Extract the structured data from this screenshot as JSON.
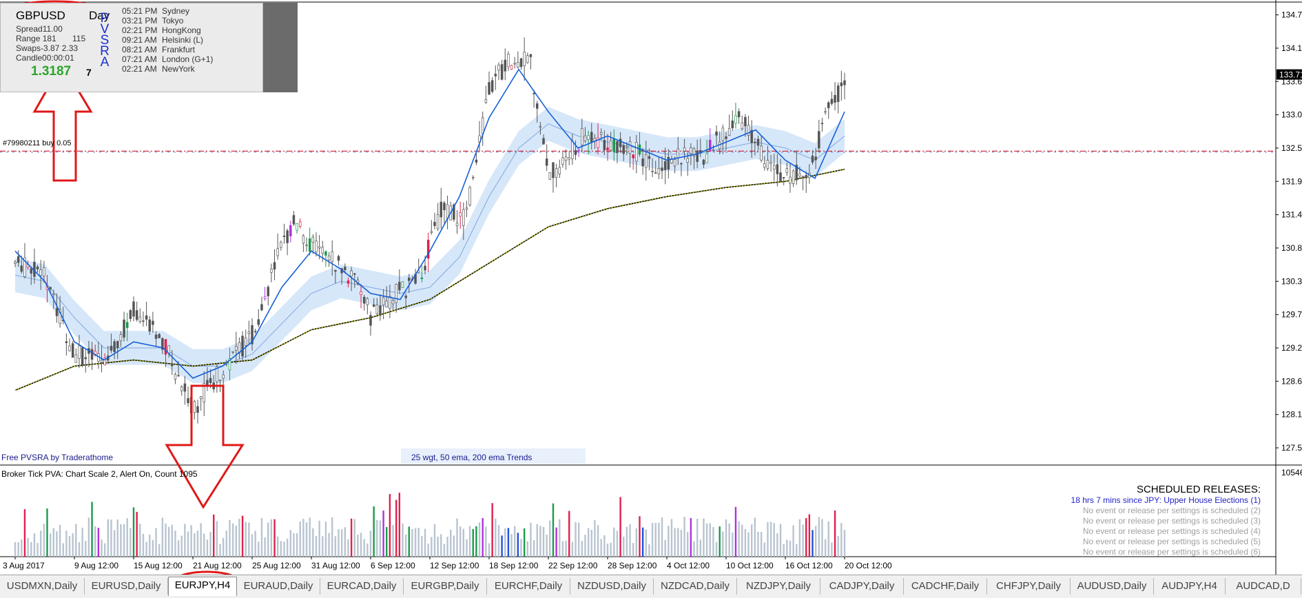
{
  "info_panel": {
    "symbol": "GBPUSD",
    "timeframe": "Day",
    "spread": "Spread11.00",
    "range": "Range 181",
    "range_extra": "115",
    "swaps": "Swaps-3.87  2.33",
    "candle": "Candle00:00:01",
    "price": "1.3187",
    "extra": "7",
    "pvsra_label": "PVSRA"
  },
  "clocks": [
    {
      "time": "05:21 PM",
      "city": "Sydney"
    },
    {
      "time": "03:21 PM",
      "city": "Tokyo"
    },
    {
      "time": "02:21 PM",
      "city": "HongKong"
    },
    {
      "time": "09:21 AM",
      "city": "Helsinki  (L)"
    },
    {
      "time": "08:21 AM",
      "city": "Frankfurt"
    },
    {
      "time": "07:21 AM",
      "city": "London  (G+1)"
    },
    {
      "time": "02:21 AM",
      "city": "NewYork"
    }
  ],
  "order_label": "#79980211 buy 0.05",
  "footer": {
    "credit": "Free  PVSRA  by  Traderathome",
    "trends": "25  wgt,  50  ema,  200  ema  Trends"
  },
  "volume_panel": {
    "header": "Broker Tick  PVA:    Chart Scale  2,  Alert On,  Count   1095",
    "axis_label": "10546"
  },
  "scheduled": {
    "title": "SCHEDULED RELEASES:",
    "first": "18 hrs 7 mins since JPY: Upper House Elections (1)",
    "others": [
      "No event or release per settings is scheduled (2)",
      "No event or release per settings is scheduled (3)",
      "No event or release per settings is scheduled (4)",
      "No event or release per settings is scheduled (5)",
      "No event or release per settings is scheduled (6)"
    ]
  },
  "price_axis": {
    "labels": [
      "134.70",
      "134.15",
      "133.60",
      "133.05",
      "132.50",
      "131.95",
      "131.40",
      "130.85",
      "130.30",
      "129.75",
      "129.20",
      "128.65",
      "128.10",
      "127.55"
    ],
    "current": "133.71"
  },
  "time_axis": {
    "labels": [
      "3 Aug 2017",
      "9 Aug 12:00",
      "15 Aug 12:00",
      "21 Aug 12:00",
      "25 Aug 12:00",
      "31 Aug 12:00",
      "6 Sep 12:00",
      "12 Sep 12:00",
      "18 Sep 12:00",
      "22 Sep 12:00",
      "28 Sep 12:00",
      "4 Oct 12:00",
      "10 Oct 12:00",
      "16 Oct 12:00",
      "20 Oct 12:00"
    ]
  },
  "tabs": [
    {
      "label": "USDMXN,Daily",
      "active": false
    },
    {
      "label": "EURUSD,Daily",
      "active": false
    },
    {
      "label": "EURJPY,H4",
      "active": true
    },
    {
      "label": "EURAUD,Daily",
      "active": false
    },
    {
      "label": "EURCAD,Daily",
      "active": false
    },
    {
      "label": "EURGBP,Daily",
      "active": false
    },
    {
      "label": "EURCHF,Daily",
      "active": false
    },
    {
      "label": "NZDUSD,Daily",
      "active": false
    },
    {
      "label": "NZDCAD,Daily",
      "active": false
    },
    {
      "label": "NZDJPY,Daily",
      "active": false
    },
    {
      "label": "CADJPY,Daily",
      "active": false
    },
    {
      "label": "CADCHF,Daily",
      "active": false
    },
    {
      "label": "CHFJPY,Daily",
      "active": false
    },
    {
      "label": "AUDUSD,Daily",
      "active": false
    },
    {
      "label": "AUDJPY,H4",
      "active": false
    },
    {
      "label": "AUDCAD,D",
      "active": false
    }
  ],
  "colors": {
    "ema_fast": "#1560d8",
    "ema_band": "#cfe3f8",
    "ema_slow": "#c8c800",
    "order_line_red": "#d03040",
    "order_line_blue": "#3050c0",
    "annotation_red": "#e01818",
    "vol_normal": "#b8c4d0",
    "vol_climax_red": "#e0204a",
    "vol_climax_green": "#1a9a4a",
    "vol_rising_blue": "#2050e0",
    "vol_magenta": "#b030e0",
    "schedule_blue": "#2222c8",
    "schedule_grey": "#a0a0a0"
  },
  "chart_data": {
    "type": "candlestick",
    "instrument": "EURJPY",
    "timeframe": "H4",
    "ylim": [
      127.3,
      134.9
    ],
    "x_categories": [
      "3 Aug 2017",
      "9 Aug 12:00",
      "15 Aug 12:00",
      "21 Aug 12:00",
      "25 Aug 12:00",
      "31 Aug 12:00",
      "6 Sep 12:00",
      "12 Sep 12:00",
      "18 Sep 12:00",
      "22 Sep 12:00",
      "28 Sep 12:00",
      "4 Oct 12:00",
      "10 Oct 12:00",
      "16 Oct 12:00",
      "20 Oct 12:00"
    ],
    "close_path": [
      [
        0,
        130.6
      ],
      [
        0.5,
        130.4
      ],
      [
        1,
        129.1
      ],
      [
        1.5,
        129.0
      ],
      [
        2,
        129.8
      ],
      [
        2.5,
        129.3
      ],
      [
        3,
        128.2
      ],
      [
        3.3,
        128.6
      ],
      [
        3.7,
        129.1
      ],
      [
        4,
        129.4
      ],
      [
        4.4,
        130.6
      ],
      [
        4.7,
        131.3
      ],
      [
        5.0,
        130.9
      ],
      [
        5.4,
        130.6
      ],
      [
        5.8,
        130.3
      ],
      [
        6,
        129.7
      ],
      [
        6.4,
        130.1
      ],
      [
        6.8,
        130.3
      ],
      [
        7.2,
        131.5
      ],
      [
        7.6,
        131.3
      ],
      [
        8.0,
        133.5
      ],
      [
        8.4,
        134.0
      ],
      [
        8.7,
        133.9
      ],
      [
        9.0,
        132.1
      ],
      [
        9.3,
        132.3
      ],
      [
        9.6,
        132.7
      ],
      [
        10.0,
        132.6
      ],
      [
        10.4,
        132.5
      ],
      [
        10.8,
        132.2
      ],
      [
        11.2,
        132.4
      ],
      [
        11.6,
        132.3
      ],
      [
        12.0,
        132.8
      ],
      [
        12.3,
        133.0
      ],
      [
        12.6,
        132.4
      ],
      [
        13.0,
        132.0
      ],
      [
        13.4,
        132.1
      ],
      [
        13.7,
        133.1
      ],
      [
        14.0,
        133.6
      ]
    ],
    "ema25_path": [
      [
        0,
        130.8
      ],
      [
        0.5,
        130.3
      ],
      [
        1,
        129.3
      ],
      [
        1.5,
        129.0
      ],
      [
        2,
        129.3
      ],
      [
        2.5,
        129.2
      ],
      [
        3,
        128.7
      ],
      [
        3.5,
        128.9
      ],
      [
        4,
        129.3
      ],
      [
        4.5,
        130.2
      ],
      [
        5,
        130.8
      ],
      [
        5.5,
        130.5
      ],
      [
        6,
        130.1
      ],
      [
        6.5,
        130.0
      ],
      [
        7,
        130.8
      ],
      [
        7.5,
        131.7
      ],
      [
        8,
        133.0
      ],
      [
        8.5,
        133.8
      ],
      [
        9,
        133.1
      ],
      [
        9.5,
        132.5
      ],
      [
        10,
        132.7
      ],
      [
        10.5,
        132.5
      ],
      [
        11,
        132.3
      ],
      [
        11.5,
        132.4
      ],
      [
        12,
        132.6
      ],
      [
        12.5,
        132.8
      ],
      [
        13,
        132.3
      ],
      [
        13.5,
        132.0
      ],
      [
        14,
        133.1
      ]
    ],
    "ema50_path": [
      [
        0,
        130.4
      ],
      [
        0.5,
        130.3
      ],
      [
        1,
        129.7
      ],
      [
        1.5,
        129.2
      ],
      [
        2,
        129.2
      ],
      [
        2.5,
        129.2
      ],
      [
        3,
        128.9
      ],
      [
        3.5,
        128.9
      ],
      [
        4,
        129.1
      ],
      [
        4.5,
        129.6
      ],
      [
        5,
        130.1
      ],
      [
        5.5,
        130.3
      ],
      [
        6,
        130.2
      ],
      [
        6.5,
        130.1
      ],
      [
        7,
        130.2
      ],
      [
        7.5,
        130.7
      ],
      [
        8,
        131.7
      ],
      [
        8.5,
        132.5
      ],
      [
        9,
        132.9
      ],
      [
        9.5,
        132.7
      ],
      [
        10,
        132.6
      ],
      [
        10.5,
        132.5
      ],
      [
        11,
        132.4
      ],
      [
        11.5,
        132.4
      ],
      [
        12,
        132.5
      ],
      [
        12.5,
        132.6
      ],
      [
        13,
        132.5
      ],
      [
        13.5,
        132.3
      ],
      [
        14,
        132.7
      ]
    ],
    "ema200_path": [
      [
        0,
        128.5
      ],
      [
        1,
        128.9
      ],
      [
        2,
        129.0
      ],
      [
        3,
        128.9
      ],
      [
        4,
        129.0
      ],
      [
        5,
        129.5
      ],
      [
        6,
        129.7
      ],
      [
        7,
        130.0
      ],
      [
        8,
        130.6
      ],
      [
        9,
        131.2
      ],
      [
        10,
        131.5
      ],
      [
        11,
        131.7
      ],
      [
        12,
        131.85
      ],
      [
        13,
        131.95
      ],
      [
        14,
        132.15
      ]
    ],
    "order_level": 132.45,
    "current_price": 133.71,
    "volume_axis_max": 10546,
    "grid": false
  }
}
